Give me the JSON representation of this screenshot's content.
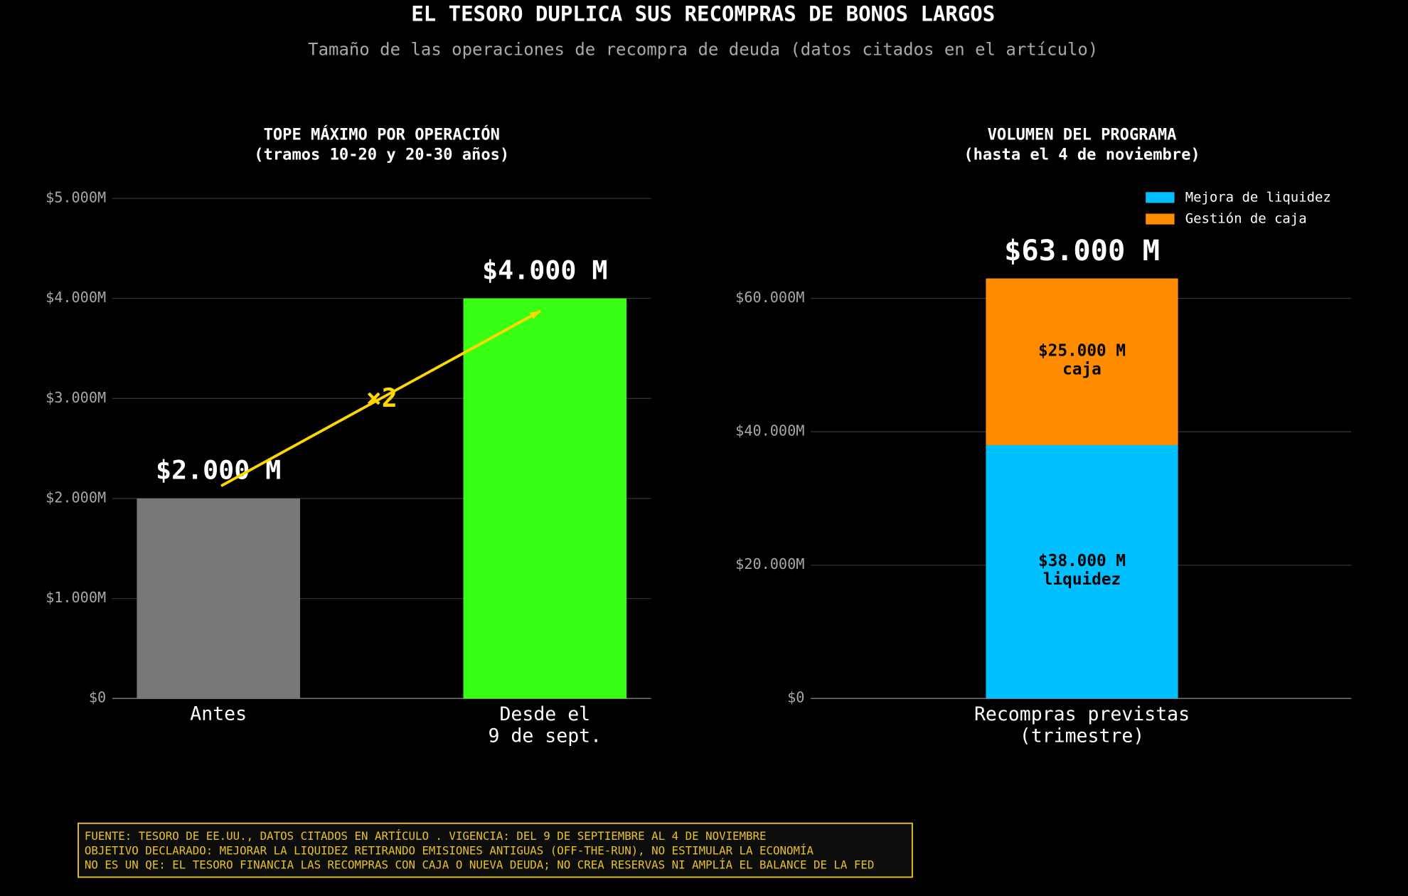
{
  "header": {
    "title": "EL TESORO DUPLICA SUS RECOMPRAS DE BONOS LARGOS",
    "subtitle": "Tamaño de las operaciones de recompra de deuda (datos citados en el artículo)"
  },
  "chart_data": [
    {
      "type": "bar",
      "title": [
        "TOPE MÁXIMO POR OPERACIÓN",
        "(tramos 10-20 y 20-30 años)"
      ],
      "categories": [
        "Antes",
        "Desde el\n9 de sept."
      ],
      "values": [
        2000,
        4000
      ],
      "value_labels": [
        "$2.000 M",
        "$4.000 M"
      ],
      "colors": [
        "#777777",
        "#39ff14"
      ],
      "annotation": "×2",
      "ylim": [
        0,
        5000
      ],
      "yticks": [
        {
          "value": 0,
          "label": "$0"
        },
        {
          "value": 1000,
          "label": "$1.000M"
        },
        {
          "value": 2000,
          "label": "$2.000M"
        },
        {
          "value": 3000,
          "label": "$3.000M"
        },
        {
          "value": 4000,
          "label": "$4.000M"
        },
        {
          "value": 5000,
          "label": "$5.000M"
        }
      ],
      "grid": true
    },
    {
      "type": "stacked_bar",
      "title": [
        "VOLUMEN DEL PROGRAMA",
        "(hasta el 4 de noviembre)"
      ],
      "categories": [
        "Recompras previstas\n(trimestre)"
      ],
      "series": [
        {
          "name": "Mejora de liquidez",
          "color": "#00bfff",
          "values": [
            38000
          ],
          "value_labels": [
            "$38.000 M\nliquidez"
          ]
        },
        {
          "name": "Gestión de caja",
          "color": "#ff8c00",
          "values": [
            25000
          ],
          "value_labels": [
            "$25.000 M\ncaja"
          ]
        }
      ],
      "total_label": "$63.000 M",
      "legend": "upper right",
      "ylim": [
        0,
        75000
      ],
      "yticks": [
        {
          "value": 0,
          "label": "$0"
        },
        {
          "value": 20000,
          "label": "$20.000M"
        },
        {
          "value": 40000,
          "label": "$40.000M"
        },
        {
          "value": 60000,
          "label": "$60.000M"
        }
      ],
      "grid": true
    }
  ],
  "footer": {
    "notes": [
      "FUENTE: TESORO DE EE.UU., DATOS CITADOS EN ARTÍCULO . VIGENCIA: DEL 9 DE SEPTIEMBRE AL 4 DE NOVIEMBRE",
      "OBJETIVO DECLARADO: MEJORAR LA LIQUIDEZ RETIRANDO EMISIONES ANTIGUAS (OFF-THE-RUN), NO ESTIMULAR LA ECONOMÍA",
      "NO ES UN QE: EL TESORO FINANCIA LAS RECOMPRAS CON CAJA O NUEVA DEUDA; NO CREA RESERVAS NI AMPLÍA EL BALANCE DE LA FED"
    ]
  }
}
